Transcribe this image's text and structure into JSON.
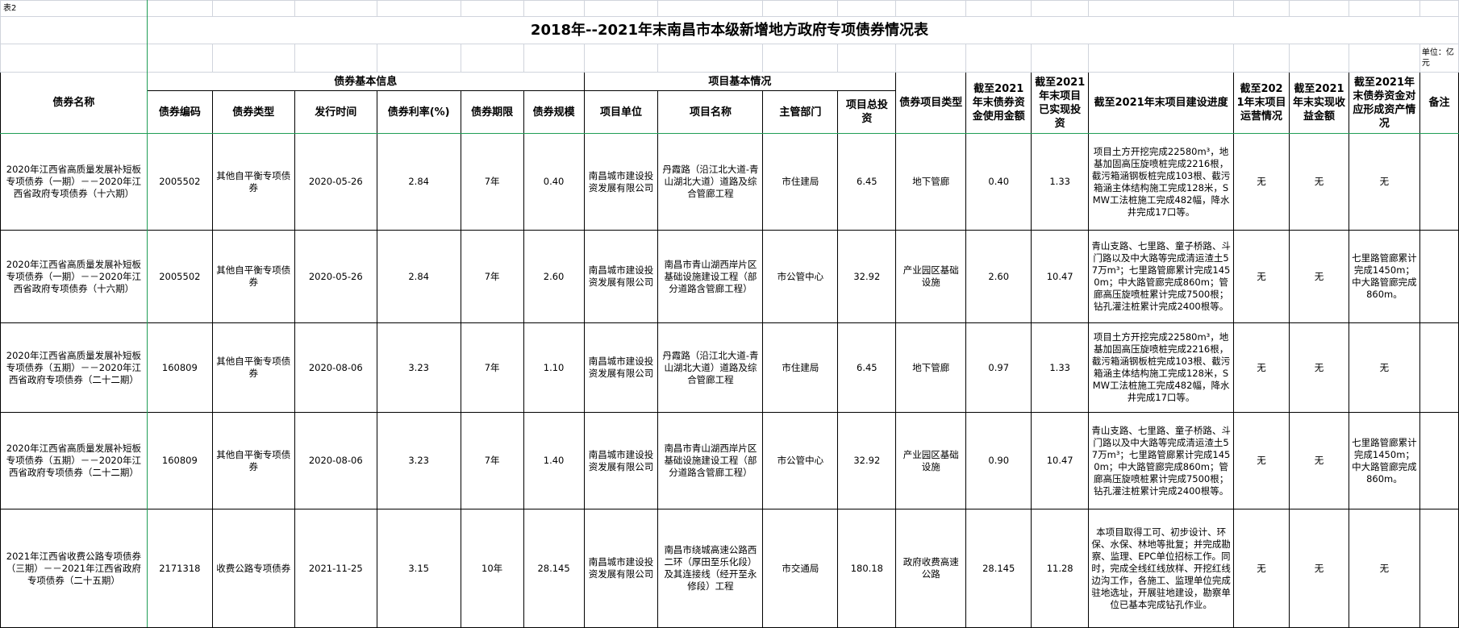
{
  "sheet_label": "表2",
  "title": "2018年--2021年末南昌市本级新增地方政府专项债券情况表",
  "unit_note": "单位：亿元",
  "groups": {
    "bond_info": "债券基本信息",
    "project_info": "项目基本情况"
  },
  "columns": [
    "债券名称",
    "债券编码",
    "债券类型",
    "发行时间",
    "债券利率(%)",
    "债券期限",
    "债券规模",
    "项目单位",
    "项目名称",
    "主管部门",
    "项目总投资",
    "债券项目类型",
    "截至2021年末债券资金使用金额",
    "截至2021年末项目已实现投资",
    "截至2021年末项目建设进度",
    "截至2021年末项目运营情况",
    "截至2021年末实现收益金额",
    "截至2021年末债券资金对应形成资产情况",
    "备注"
  ],
  "rows": [
    [
      "2020年江西省高质量发展补短板专项债券（一期）－－2020年江西省政府专项债券（十六期）",
      "2005502",
      "其他自平衡专项债券",
      "2020-05-26",
      "2.84",
      "7年",
      "0.40",
      "南昌城市建设投资发展有限公司",
      "丹霞路（沿江北大道-青山湖北大道）道路及综合管廊工程",
      "市住建局",
      "6.45",
      "地下管廊",
      "0.40",
      "1.33",
      "项目土方开挖完成22580m³，地基加固高压旋喷桩完成2216根，截污箱涵钢板桩完成103根、截污箱涵主体结构施工完成128米，SMW工法桩施工完成482幅，降水井完成17口等。",
      "无",
      "无",
      "无",
      ""
    ],
    [
      "2020年江西省高质量发展补短板专项债券（一期）－－2020年江西省政府专项债券（十六期）",
      "2005502",
      "其他自平衡专项债券",
      "2020-05-26",
      "2.84",
      "7年",
      "2.60",
      "南昌城市建设投资发展有限公司",
      "南昌市青山湖西岸片区基础设施建设工程（部分道路含管廊工程）",
      "市公管中心",
      "32.92",
      "产业园区基础设施",
      "2.60",
      "10.47",
      "青山支路、七里路、童子桥路、斗门路以及中大路等完成清运渣土57万m³；七里路管廊累计完成1450m；中大路管廊完成860m；管廊高压旋喷桩累计完成7500根；钻孔灌注桩累计完成2400根等。",
      "无",
      "无",
      "七里路管廊累计完成1450m；中大路管廊完成860m。",
      ""
    ],
    [
      "2020年江西省高质量发展补短板专项债券（五期）－－2020年江西省政府专项债券（二十二期）",
      "160809",
      "其他自平衡专项债券",
      "2020-08-06",
      "3.23",
      "7年",
      "1.10",
      "南昌城市建设投资发展有限公司",
      "丹霞路（沿江北大道-青山湖北大道）道路及综合管廊工程",
      "市住建局",
      "6.45",
      "地下管廊",
      "0.97",
      "1.33",
      "项目土方开挖完成22580m³，地基加固高压旋喷桩完成2216根，截污箱涵钢板桩完成103根、截污箱涵主体结构施工完成128米，SMW工法桩施工完成482幅，降水井完成17口等。",
      "无",
      "无",
      "无",
      ""
    ],
    [
      "2020年江西省高质量发展补短板专项债券（五期）－－2020年江西省政府专项债券（二十二期）",
      "160809",
      "其他自平衡专项债券",
      "2020-08-06",
      "3.23",
      "7年",
      "1.40",
      "南昌城市建设投资发展有限公司",
      "南昌市青山湖西岸片区基础设施建设工程（部分道路含管廊工程）",
      "市公管中心",
      "32.92",
      "产业园区基础设施",
      "0.90",
      "10.47",
      "青山支路、七里路、童子桥路、斗门路以及中大路等完成清运渣土57万m³；七里路管廊累计完成1450m；中大路管廊完成860m；管廊高压旋喷桩累计完成7500根；钻孔灌注桩累计完成2400根等。",
      "无",
      "无",
      "七里路管廊累计完成1450m；中大路管廊完成860m。",
      ""
    ],
    [
      "2021年江西省收费公路专项债券（三期）－－2021年江西省政府专项债券（二十五期）",
      "2171318",
      "收费公路专项债券",
      "2021-11-25",
      "3.15",
      "10年",
      "28.145",
      "南昌城市建设投资发展有限公司",
      "南昌市绕城高速公路西二环（厚田至乐化段）及其连接线（经开至永修段）工程",
      "市交通局",
      "180.18",
      "政府收费高速公路",
      "28.145",
      "11.28",
      "本项目取得工可、初步设计、环保、水保、林地等批复；并完成勘察、监理、EPC单位招标工作。同时，完成全线红线放样、开挖红线边沟工作，各施工、监理单位完成驻地选址，开展驻地建设，勘察单位已基本完成钻孔作业。",
      "无",
      "无",
      "无",
      ""
    ]
  ],
  "colors": {
    "grid": "#d0d4dc",
    "border": "#000000",
    "freeze_line": "#1f9d55"
  }
}
